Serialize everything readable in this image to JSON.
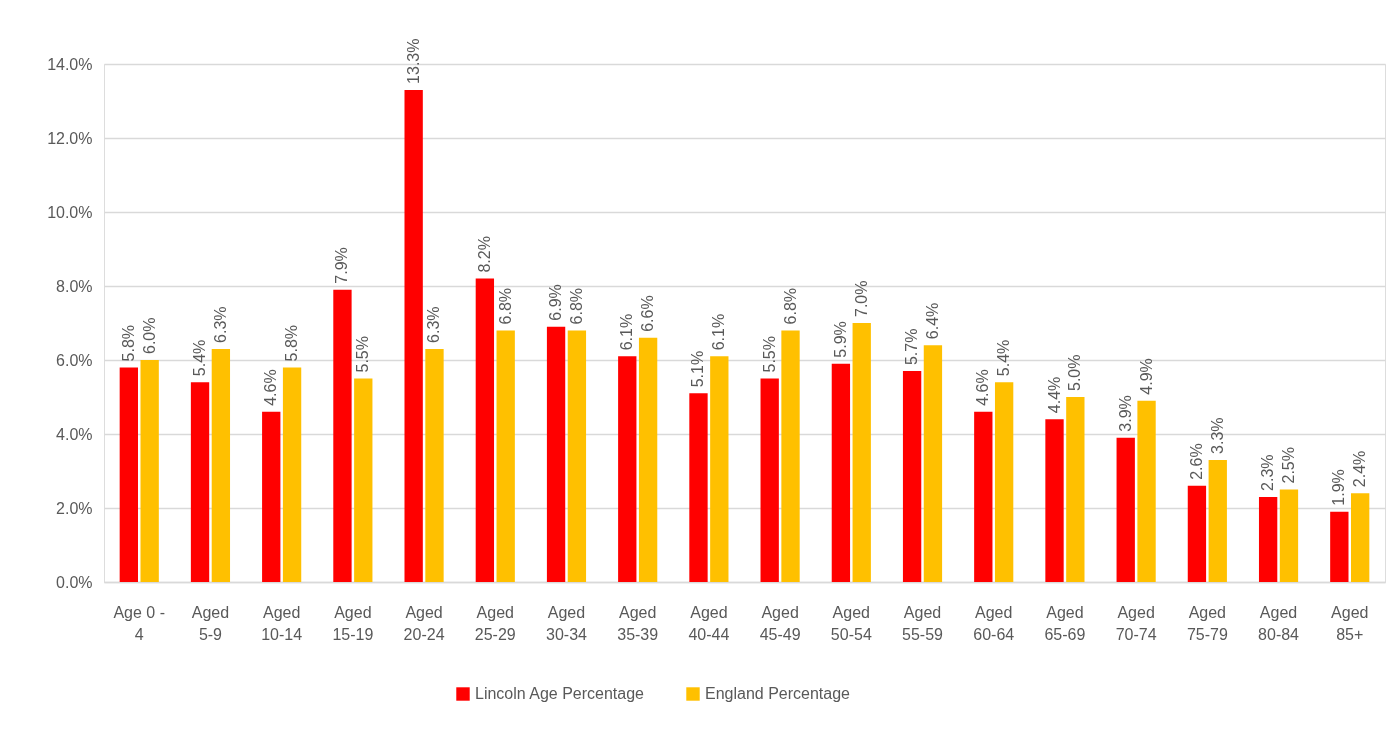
{
  "chart_data": {
    "type": "bar",
    "categories": [
      "Age 0 - 4",
      "Aged 5-9",
      "Aged 10-14",
      "Aged 15-19",
      "Aged 20-24",
      "Aged 25-29",
      "Aged 30-34",
      "Aged 35-39",
      "Aged 40-44",
      "Aged 45-49",
      "Aged 50-54",
      "Aged 55-59",
      "Aged 60-64",
      "Aged 65-69",
      "Aged 70-74",
      "Aged 75-79",
      "Aged 80-84",
      "Aged 85+"
    ],
    "series": [
      {
        "name": "Lincoln Age Percentage",
        "color": "#ff0000",
        "values": [
          5.8,
          5.4,
          4.6,
          7.9,
          13.3,
          8.2,
          6.9,
          6.1,
          5.1,
          5.5,
          5.9,
          5.7,
          4.6,
          4.4,
          3.9,
          2.6,
          2.3,
          1.9
        ],
        "value_labels": [
          "5.8%",
          "5.4%",
          "4.6%",
          "7.9%",
          "13.3%",
          "8.2%",
          "6.9%",
          "6.1%",
          "5.1%",
          "5.5%",
          "5.9%",
          "5.7%",
          "4.6%",
          "4.4%",
          "3.9%",
          "2.6%",
          "2.3%",
          "1.9%"
        ]
      },
      {
        "name": "England Percentage",
        "color": "#ffc000",
        "values": [
          6.0,
          6.3,
          5.8,
          5.5,
          6.3,
          6.8,
          6.8,
          6.6,
          6.1,
          6.8,
          7.0,
          6.4,
          5.4,
          5.0,
          4.9,
          3.3,
          2.5,
          2.4
        ],
        "value_labels": [
          "6.0%",
          "6.3%",
          "5.8%",
          "5.5%",
          "6.3%",
          "6.8%",
          "6.8%",
          "6.6%",
          "6.1%",
          "6.8%",
          "7.0%",
          "6.4%",
          "5.4%",
          "5.0%",
          "4.9%",
          "3.3%",
          "2.5%",
          "2.4%"
        ]
      }
    ],
    "ylim": [
      0,
      14
    ],
    "yticks": [
      {
        "value": 0,
        "label": "0.0%"
      },
      {
        "value": 2,
        "label": "2.0%"
      },
      {
        "value": 4,
        "label": "4.0%"
      },
      {
        "value": 6,
        "label": "6.0%"
      },
      {
        "value": 8,
        "label": "8.0%"
      },
      {
        "value": 10,
        "label": "10.0%"
      },
      {
        "value": 12,
        "label": "12.0%"
      },
      {
        "value": 14,
        "label": "14.0%"
      }
    ],
    "grid": "y",
    "legend": "bottom"
  }
}
